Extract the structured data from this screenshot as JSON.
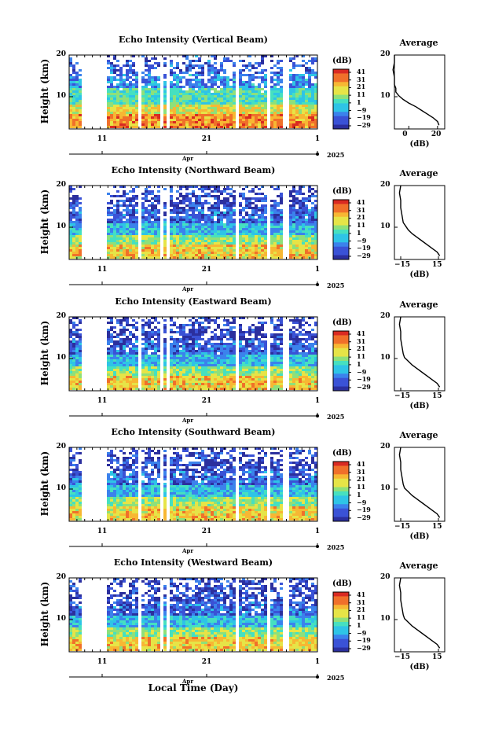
{
  "chart_data": [
    {
      "type": "heatmap",
      "title": "Echo Intensity (Vertical Beam)",
      "ylabel": "Height (km)",
      "yticks": [
        "20",
        "10"
      ],
      "ylim": [
        0,
        20
      ],
      "colorbar_title": "(dB)",
      "colorbar_ticks": [
        "41",
        "31",
        "21",
        "11",
        "1",
        "−9",
        "−19",
        "−29"
      ],
      "colorbar_range": [
        -29,
        41
      ],
      "avg_title": "Average",
      "avg_xticks": [
        "0",
        "20"
      ],
      "avg_xlim": [
        -10,
        25
      ],
      "avg_xlabel": "(dB)",
      "avg_profile": [
        [
          21,
          1
        ],
        [
          20,
          2
        ],
        [
          17,
          3
        ],
        [
          13,
          4
        ],
        [
          9,
          5
        ],
        [
          5,
          6
        ],
        [
          0,
          7
        ],
        [
          -4,
          8
        ],
        [
          -7,
          9
        ],
        [
          -9,
          10
        ],
        [
          -9,
          11
        ],
        [
          -10,
          12
        ],
        [
          -10,
          14
        ],
        [
          -11,
          16
        ],
        [
          -10,
          18
        ],
        [
          -10,
          20
        ]
      ]
    },
    {
      "type": "heatmap",
      "title": "Echo Intensity (Northward Beam)",
      "ylabel": "Height (km)",
      "yticks": [
        "20",
        "10"
      ],
      "ylim": [
        0,
        20
      ],
      "colorbar_title": "(dB)",
      "colorbar_ticks": [
        "41",
        "31",
        "21",
        "11",
        "1",
        "−9",
        "−19",
        "−29"
      ],
      "colorbar_range": [
        -29,
        41
      ],
      "avg_title": "Average",
      "avg_xticks": [
        "−15",
        "15"
      ],
      "avg_xlim": [
        -20,
        20
      ],
      "avg_xlabel": "(dB)",
      "avg_profile": [
        [
          16,
          1
        ],
        [
          14,
          2
        ],
        [
          10,
          3
        ],
        [
          6,
          4
        ],
        [
          2,
          5
        ],
        [
          -2,
          6
        ],
        [
          -6,
          7
        ],
        [
          -9,
          8
        ],
        [
          -11,
          9
        ],
        [
          -13,
          10
        ],
        [
          -14,
          12
        ],
        [
          -15,
          14
        ],
        [
          -15,
          16
        ],
        [
          -16,
          18
        ],
        [
          -15,
          20
        ]
      ]
    },
    {
      "type": "heatmap",
      "title": "Echo Intensity (Eastward Beam)",
      "ylabel": "Height (km)",
      "yticks": [
        "20",
        "10"
      ],
      "ylim": [
        0,
        20
      ],
      "colorbar_title": "(dB)",
      "colorbar_ticks": [
        "41",
        "31",
        "21",
        "11",
        "1",
        "−9",
        "−19",
        "−29"
      ],
      "colorbar_range": [
        -29,
        41
      ],
      "avg_title": "Average",
      "avg_xticks": [
        "−15",
        "15"
      ],
      "avg_xlim": [
        -20,
        20
      ],
      "avg_xlabel": "(dB)",
      "avg_profile": [
        [
          16,
          1
        ],
        [
          14,
          2
        ],
        [
          10,
          3
        ],
        [
          6,
          4
        ],
        [
          2,
          5
        ],
        [
          -2,
          6
        ],
        [
          -6,
          7
        ],
        [
          -9,
          8
        ],
        [
          -12,
          9
        ],
        [
          -13,
          10
        ],
        [
          -14,
          12
        ],
        [
          -15,
          14
        ],
        [
          -15,
          16
        ],
        [
          -16,
          18
        ],
        [
          -15,
          20
        ]
      ]
    },
    {
      "type": "heatmap",
      "title": "Echo Intensity (Southward Beam)",
      "ylabel": "Height (km)",
      "yticks": [
        "20",
        "10"
      ],
      "ylim": [
        0,
        20
      ],
      "colorbar_title": "(dB)",
      "colorbar_ticks": [
        "41",
        "31",
        "21",
        "11",
        "1",
        "−9",
        "−19",
        "−29"
      ],
      "colorbar_range": [
        -29,
        41
      ],
      "avg_title": "Average",
      "avg_xticks": [
        "−15",
        "15"
      ],
      "avg_xlim": [
        -20,
        20
      ],
      "avg_xlabel": "(dB)",
      "avg_profile": [
        [
          16,
          1
        ],
        [
          14,
          2
        ],
        [
          10,
          3
        ],
        [
          6,
          4
        ],
        [
          2,
          5
        ],
        [
          -2,
          6
        ],
        [
          -6,
          7
        ],
        [
          -9,
          8
        ],
        [
          -12,
          9
        ],
        [
          -13,
          10
        ],
        [
          -14,
          12
        ],
        [
          -15,
          14
        ],
        [
          -15,
          16
        ],
        [
          -16,
          18
        ],
        [
          -15,
          20
        ]
      ]
    },
    {
      "type": "heatmap",
      "title": "Echo Intensity (Westward Beam)",
      "ylabel": "Height (km)",
      "yticks": [
        "20",
        "10"
      ],
      "ylim": [
        0,
        20
      ],
      "colorbar_title": "(dB)",
      "colorbar_ticks": [
        "41",
        "31",
        "21",
        "11",
        "1",
        "−9",
        "−19",
        "−29"
      ],
      "colorbar_range": [
        -29,
        41
      ],
      "avg_title": "Average",
      "avg_xticks": [
        "−15",
        "15"
      ],
      "avg_xlim": [
        -20,
        20
      ],
      "avg_xlabel": "(dB)",
      "avg_profile": [
        [
          16,
          1
        ],
        [
          14,
          2
        ],
        [
          10,
          3
        ],
        [
          6,
          4
        ],
        [
          2,
          5
        ],
        [
          -2,
          6
        ],
        [
          -6,
          7
        ],
        [
          -9,
          8
        ],
        [
          -12,
          9
        ],
        [
          -13,
          10
        ],
        [
          -14,
          12
        ],
        [
          -15,
          14
        ],
        [
          -15,
          16
        ],
        [
          -16,
          18
        ],
        [
          -15,
          20
        ]
      ]
    }
  ],
  "time_axis": {
    "ticks": [
      "11",
      "21",
      "1"
    ],
    "month": "Apr",
    "year": "2025",
    "label": "Local Time (Day)"
  },
  "colors": {
    "colormap": [
      "#2b2f9e",
      "#3a52d6",
      "#3b82ec",
      "#2ec4e6",
      "#46e0c0",
      "#8ee07a",
      "#e6e447",
      "#f7b733",
      "#f0702a",
      "#d92a22"
    ]
  }
}
